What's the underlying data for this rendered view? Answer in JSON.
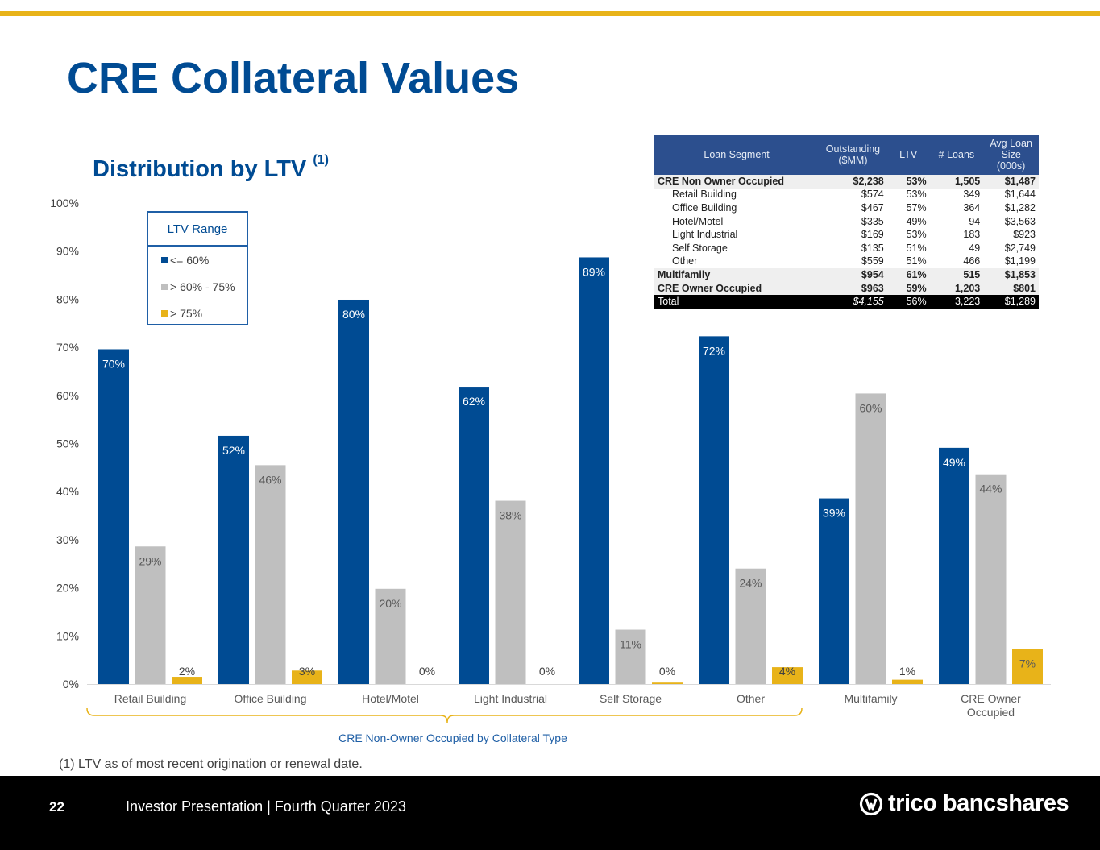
{
  "header": {
    "title": "CRE Collateral Values"
  },
  "subtitle": {
    "text": "Distribution by LTV",
    "note": "(1)"
  },
  "colors": {
    "series1": "#004b93",
    "series2": "#bfbfbf",
    "series3": "#e8b319",
    "title": "#004b93",
    "accent": "#e8b319"
  },
  "legend": {
    "title": "LTV Range",
    "items": [
      {
        "label": "<= 60%",
        "color": "#004b93"
      },
      {
        "label": "> 60% - 75%",
        "color": "#bfbfbf"
      },
      {
        "label": "> 75%",
        "color": "#e8b319"
      }
    ]
  },
  "chart_data": {
    "type": "bar",
    "title": "Distribution by LTV (1)",
    "categories": [
      "Retail Building",
      "Office Building",
      "Hotel/Motel",
      "Light Industrial",
      "Self Storage",
      "Other",
      "Multifamily",
      "CRE Owner Occupied"
    ],
    "category_lines": [
      [
        "Retail Building"
      ],
      [
        "Office Building"
      ],
      [
        "Hotel/Motel"
      ],
      [
        "Light Industrial"
      ],
      [
        "Self Storage"
      ],
      [
        "Other"
      ],
      [
        "Multifamily"
      ],
      [
        "CRE Owner",
        "Occupied"
      ]
    ],
    "series": [
      {
        "name": "<= 60%",
        "color": "#004b93",
        "values": [
          70,
          52,
          80,
          62,
          89,
          72,
          39,
          49
        ]
      },
      {
        "name": "> 60% - 75%",
        "color": "#bfbfbf",
        "values": [
          29,
          46,
          20,
          38,
          11,
          24,
          60,
          44
        ]
      },
      {
        "name": "> 75%",
        "color": "#e8b319",
        "values": [
          2,
          3,
          0,
          0,
          0,
          4,
          1,
          7
        ]
      }
    ],
    "plot_values": [
      [
        69.6,
        51.6,
        79.9,
        61.8,
        88.7,
        72.3,
        38.6,
        49.1
      ],
      [
        28.6,
        45.5,
        19.8,
        38.1,
        11.3,
        24.0,
        60.4,
        43.6
      ],
      [
        1.5,
        2.8,
        0,
        0,
        0.3,
        3.5,
        0.9,
        7.3
      ]
    ],
    "ylim": [
      0,
      100
    ],
    "yticks": [
      "0%",
      "10%",
      "20%",
      "30%",
      "40%",
      "50%",
      "60%",
      "70%",
      "80%",
      "90%",
      "100%"
    ],
    "grid": false,
    "xlabel": "",
    "ylabel": "",
    "group_label": "CRE Non-Owner Occupied by Collateral Type",
    "table": {
      "columns": [
        "Loan Segment",
        "Outstanding ($MM)",
        "LTV",
        "# Loans",
        "Avg Loan Size (000s)"
      ],
      "rows": [
        [
          "CRE Non Owner Occupied",
          "$2,238",
          "53%",
          "1,505",
          "$1,487"
        ],
        [
          "Retail Building",
          "$574",
          "53%",
          "349",
          "$1,644"
        ],
        [
          "Office Building",
          "$467",
          "57%",
          "364",
          "$1,282"
        ],
        [
          "Hotel/Motel",
          "$335",
          "49%",
          "94",
          "$3,563"
        ],
        [
          "Light Industrial",
          "$169",
          "53%",
          "183",
          "$923"
        ],
        [
          "Self Storage",
          "$135",
          "51%",
          "49",
          "$2,749"
        ],
        [
          "Other",
          "$559",
          "51%",
          "466",
          "$1,199"
        ],
        [
          "Multifamily",
          "$954",
          "61%",
          "515",
          "$1,853"
        ],
        [
          "CRE Owner Occupied",
          "$963",
          "59%",
          "1,203",
          "$801"
        ],
        [
          "Total",
          "$4,155",
          "56%",
          "3,223",
          "$1,289"
        ]
      ]
    }
  },
  "table_header": {
    "segment": "Loan Segment",
    "outstanding_1": "Outstanding",
    "outstanding_2": "($MM)",
    "ltv": "LTV",
    "loans": "# Loans",
    "avg_1": "Avg Loan",
    "avg_2": "Size",
    "avg_3": "(000s)"
  },
  "footnote": "(1)  LTV as of most recent origination or renewal date.",
  "footer": {
    "page": "22",
    "text": "Investor Presentation | Fourth Quarter 2023",
    "logo_text": "trico bancshares"
  }
}
